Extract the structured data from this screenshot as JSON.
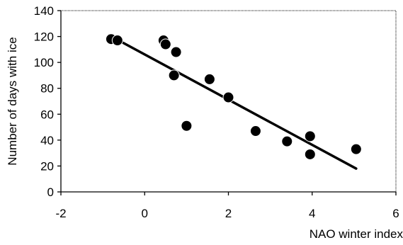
{
  "chart_data": {
    "type": "scatter",
    "title": "",
    "xlabel": "NAO winter index",
    "ylabel": "Number of days with ice",
    "xlim": [
      -2,
      6
    ],
    "ylim": [
      0,
      140
    ],
    "x_ticks": [
      "-2",
      "0",
      "2",
      "4",
      "6"
    ],
    "y_ticks": [
      "0",
      "20",
      "40",
      "60",
      "80",
      "100",
      "120",
      "140"
    ],
    "grid": false,
    "legend": "none",
    "plot_border_style": "dotted",
    "colors": {
      "marker": "#000000",
      "line": "#000000",
      "marker_outline": "#ffffff"
    },
    "series": [
      {
        "points": [
          [
            -0.8,
            118
          ],
          [
            -0.65,
            117
          ],
          [
            0.45,
            117
          ],
          [
            0.5,
            114
          ],
          [
            0.75,
            108
          ],
          [
            0.7,
            90
          ],
          [
            1.55,
            87
          ],
          [
            2.0,
            73
          ],
          [
            1.0,
            51
          ],
          [
            2.65,
            47
          ],
          [
            3.4,
            39
          ],
          [
            3.95,
            43
          ],
          [
            3.95,
            29
          ],
          [
            5.05,
            33
          ]
        ]
      }
    ],
    "trendline": {
      "x": [
        -0.85,
        5.05
      ],
      "y": [
        121,
        18
      ]
    }
  }
}
